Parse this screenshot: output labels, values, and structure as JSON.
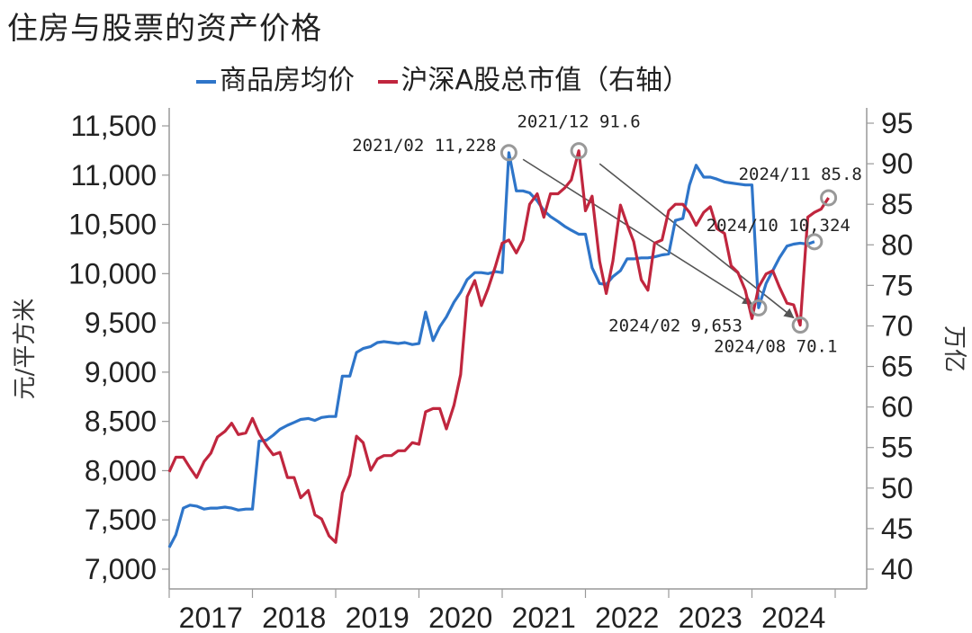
{
  "title": "住房与股票的资产价格",
  "chart_data": {
    "type": "line",
    "title": "住房与股票的资产价格",
    "x_categories": [
      "2017",
      "2018",
      "2019",
      "2020",
      "2021",
      "2022",
      "2023",
      "2024"
    ],
    "y_left_label": "元/平方米",
    "y_right_label": "万亿",
    "y_left_ticks": [
      "7,000",
      "7,500",
      "8,000",
      "8,500",
      "9,000",
      "9,500",
      "10,000",
      "10,500",
      "11,000",
      "11,500"
    ],
    "y_right_ticks": [
      "40",
      "45",
      "50",
      "55",
      "60",
      "65",
      "70",
      "75",
      "80",
      "85",
      "90",
      "95"
    ],
    "y_left_range": [
      7000,
      11500
    ],
    "y_right_range": [
      40,
      95
    ],
    "x_range": [
      2017.0,
      2025.0
    ],
    "legend_position": "top",
    "grid": false,
    "series": [
      {
        "name": "商品房均价",
        "axis": "left",
        "color": "#2e75c9",
        "points": [
          [
            2017.0,
            7220
          ],
          [
            2017.08,
            7350
          ],
          [
            2017.17,
            7620
          ],
          [
            2017.25,
            7650
          ],
          [
            2017.33,
            7640
          ],
          [
            2017.42,
            7610
          ],
          [
            2017.5,
            7620
          ],
          [
            2017.58,
            7620
          ],
          [
            2017.67,
            7630
          ],
          [
            2017.75,
            7620
          ],
          [
            2017.83,
            7600
          ],
          [
            2017.92,
            7610
          ],
          [
            2018.0,
            7610
          ],
          [
            2018.08,
            8300
          ],
          [
            2018.17,
            8310
          ],
          [
            2018.25,
            8360
          ],
          [
            2018.33,
            8420
          ],
          [
            2018.42,
            8460
          ],
          [
            2018.5,
            8490
          ],
          [
            2018.58,
            8520
          ],
          [
            2018.67,
            8530
          ],
          [
            2018.75,
            8510
          ],
          [
            2018.83,
            8540
          ],
          [
            2018.92,
            8550
          ],
          [
            2019.0,
            8550
          ],
          [
            2019.08,
            8960
          ],
          [
            2019.17,
            8960
          ],
          [
            2019.25,
            9200
          ],
          [
            2019.33,
            9240
          ],
          [
            2019.42,
            9260
          ],
          [
            2019.5,
            9300
          ],
          [
            2019.58,
            9310
          ],
          [
            2019.67,
            9300
          ],
          [
            2019.75,
            9290
          ],
          [
            2019.83,
            9300
          ],
          [
            2019.92,
            9280
          ],
          [
            2020.0,
            9290
          ],
          [
            2020.08,
            9610
          ],
          [
            2020.17,
            9320
          ],
          [
            2020.25,
            9460
          ],
          [
            2020.33,
            9560
          ],
          [
            2020.42,
            9710
          ],
          [
            2020.5,
            9810
          ],
          [
            2020.58,
            9940
          ],
          [
            2020.67,
            10010
          ],
          [
            2020.75,
            10010
          ],
          [
            2020.83,
            10000
          ],
          [
            2020.92,
            10020
          ],
          [
            2021.0,
            10010
          ],
          [
            2021.08,
            11228
          ],
          [
            2021.17,
            10840
          ],
          [
            2021.25,
            10840
          ],
          [
            2021.33,
            10820
          ],
          [
            2021.42,
            10740
          ],
          [
            2021.5,
            10640
          ],
          [
            2021.58,
            10580
          ],
          [
            2021.67,
            10530
          ],
          [
            2021.75,
            10480
          ],
          [
            2021.83,
            10440
          ],
          [
            2021.92,
            10400
          ],
          [
            2022.0,
            10400
          ],
          [
            2022.08,
            10060
          ],
          [
            2022.17,
            9900
          ],
          [
            2022.25,
            9890
          ],
          [
            2022.33,
            9970
          ],
          [
            2022.42,
            10030
          ],
          [
            2022.5,
            10150
          ],
          [
            2022.58,
            10150
          ],
          [
            2022.67,
            10160
          ],
          [
            2022.75,
            10160
          ],
          [
            2022.83,
            10170
          ],
          [
            2022.92,
            10190
          ],
          [
            2023.0,
            10200
          ],
          [
            2023.08,
            10540
          ],
          [
            2023.17,
            10560
          ],
          [
            2023.25,
            10900
          ],
          [
            2023.33,
            11100
          ],
          [
            2023.42,
            10980
          ],
          [
            2023.5,
            10980
          ],
          [
            2023.58,
            10960
          ],
          [
            2023.67,
            10930
          ],
          [
            2023.75,
            10920
          ],
          [
            2023.83,
            10910
          ],
          [
            2023.92,
            10900
          ],
          [
            2024.0,
            10900
          ],
          [
            2024.08,
            9653
          ],
          [
            2024.17,
            9900
          ],
          [
            2024.25,
            10030
          ],
          [
            2024.33,
            10160
          ],
          [
            2024.42,
            10280
          ],
          [
            2024.5,
            10300
          ],
          [
            2024.58,
            10310
          ],
          [
            2024.67,
            10300
          ],
          [
            2024.75,
            10324
          ]
        ]
      },
      {
        "name": "沪深A股总市值（右轴）",
        "axis": "right",
        "color": "#c0263e",
        "points": [
          [
            2017.0,
            52.0
          ],
          [
            2017.08,
            53.8
          ],
          [
            2017.17,
            53.8
          ],
          [
            2017.25,
            52.5
          ],
          [
            2017.33,
            51.3
          ],
          [
            2017.42,
            53.3
          ],
          [
            2017.5,
            54.3
          ],
          [
            2017.58,
            56.3
          ],
          [
            2017.67,
            57.0
          ],
          [
            2017.75,
            58.0
          ],
          [
            2017.83,
            56.6
          ],
          [
            2017.92,
            56.8
          ],
          [
            2018.0,
            58.6
          ],
          [
            2018.08,
            56.7
          ],
          [
            2018.17,
            55.2
          ],
          [
            2018.25,
            54.1
          ],
          [
            2018.33,
            54.4
          ],
          [
            2018.42,
            51.3
          ],
          [
            2018.5,
            51.3
          ],
          [
            2018.58,
            48.8
          ],
          [
            2018.67,
            49.7
          ],
          [
            2018.75,
            46.7
          ],
          [
            2018.83,
            46.2
          ],
          [
            2018.92,
            44.1
          ],
          [
            2019.0,
            43.3
          ],
          [
            2019.08,
            49.4
          ],
          [
            2019.17,
            51.6
          ],
          [
            2019.25,
            56.4
          ],
          [
            2019.33,
            55.6
          ],
          [
            2019.42,
            52.2
          ],
          [
            2019.5,
            53.6
          ],
          [
            2019.58,
            54.0
          ],
          [
            2019.67,
            54.0
          ],
          [
            2019.75,
            54.6
          ],
          [
            2019.83,
            54.6
          ],
          [
            2019.92,
            55.6
          ],
          [
            2020.0,
            55.4
          ],
          [
            2020.08,
            59.4
          ],
          [
            2020.17,
            59.8
          ],
          [
            2020.25,
            59.8
          ],
          [
            2020.33,
            57.3
          ],
          [
            2020.42,
            60.2
          ],
          [
            2020.5,
            64.0
          ],
          [
            2020.58,
            73.6
          ],
          [
            2020.67,
            75.6
          ],
          [
            2020.75,
            72.5
          ],
          [
            2020.83,
            74.6
          ],
          [
            2020.92,
            77.4
          ],
          [
            2021.0,
            80.2
          ],
          [
            2021.08,
            80.6
          ],
          [
            2021.17,
            79.0
          ],
          [
            2021.25,
            80.6
          ],
          [
            2021.33,
            85.0
          ],
          [
            2021.42,
            86.3
          ],
          [
            2021.5,
            83.4
          ],
          [
            2021.58,
            86.3
          ],
          [
            2021.67,
            86.3
          ],
          [
            2021.75,
            87.0
          ],
          [
            2021.83,
            88.0
          ],
          [
            2021.92,
            91.6
          ],
          [
            2022.0,
            84.2
          ],
          [
            2022.08,
            86.0
          ],
          [
            2022.17,
            78.0
          ],
          [
            2022.25,
            74.0
          ],
          [
            2022.33,
            78.0
          ],
          [
            2022.42,
            84.9
          ],
          [
            2022.5,
            82.5
          ],
          [
            2022.58,
            80.4
          ],
          [
            2022.67,
            75.7
          ],
          [
            2022.75,
            74.4
          ],
          [
            2022.83,
            80.2
          ],
          [
            2022.92,
            80.6
          ],
          [
            2023.0,
            84.2
          ],
          [
            2023.08,
            85.0
          ],
          [
            2023.17,
            85.0
          ],
          [
            2023.25,
            84.0
          ],
          [
            2023.33,
            82.4
          ],
          [
            2023.42,
            84.0
          ],
          [
            2023.5,
            84.7
          ],
          [
            2023.58,
            82.0
          ],
          [
            2023.67,
            81.4
          ],
          [
            2023.75,
            77.4
          ],
          [
            2023.83,
            76.6
          ],
          [
            2023.92,
            74.4
          ],
          [
            2024.0,
            70.9
          ],
          [
            2024.08,
            74.8
          ],
          [
            2024.17,
            76.4
          ],
          [
            2024.25,
            76.8
          ],
          [
            2024.33,
            74.8
          ],
          [
            2024.42,
            72.8
          ],
          [
            2024.5,
            72.6
          ],
          [
            2024.58,
            70.1
          ],
          [
            2024.67,
            83.4
          ],
          [
            2024.75,
            84.0
          ],
          [
            2024.83,
            84.4
          ],
          [
            2024.92,
            85.8
          ]
        ]
      }
    ],
    "annotations": [
      {
        "label": "2021/02  11,228",
        "series": 0,
        "x": 2021.08,
        "y": 11228
      },
      {
        "label": "2021/12  91.6",
        "series": 1,
        "x": 2021.92,
        "y": 91.6
      },
      {
        "label": "2024/02  9,653",
        "series": 0,
        "x": 2024.08,
        "y": 9653
      },
      {
        "label": "2024/08  70.1",
        "series": 1,
        "x": 2024.58,
        "y": 70.1
      },
      {
        "label": "2024/10  10,324",
        "series": 0,
        "x": 2024.75,
        "y": 10324
      },
      {
        "label": "2024/11  85.8",
        "series": 1,
        "x": 2024.92,
        "y": 85.8
      }
    ],
    "trend_arrows": [
      {
        "from": [
          2021.25,
          11160
        ],
        "to": [
          2024.0,
          9690
        ],
        "axis": "left"
      },
      {
        "from": [
          2022.17,
          90.0
        ],
        "to": [
          2024.5,
          71.0
        ],
        "axis": "right"
      }
    ]
  }
}
